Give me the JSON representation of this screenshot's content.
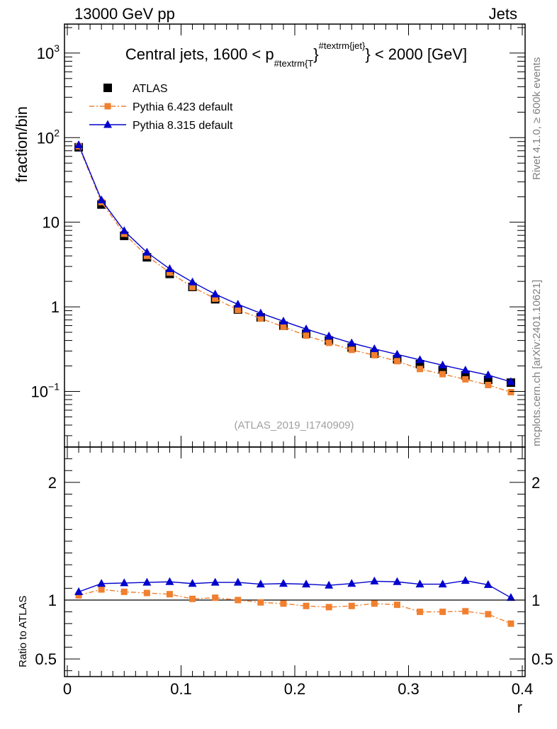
{
  "header": {
    "left": "13000 GeV pp",
    "right": "Jets"
  },
  "side": {
    "rivet": "Rivet 4.1.0, ≥ 600k events",
    "mcplots": "mcplots.cern.ch [arXiv:2401.10621]"
  },
  "chart_data": {
    "type": "line",
    "title_parts": {
      "pre": "Central jets, 1600 < p",
      "sub": "#textrm{T",
      "mid": "}",
      "sup": "#textrm{jet}",
      "post": "} < 2000 [GeV]"
    },
    "ylabel": "fraction/bin",
    "ratio_ylabel": "Ratio to ATLAS",
    "xlabel": "r",
    "watermark": "(ATLAS_2019_I1740909)",
    "xlim": [
      -0.0025,
      0.4025
    ],
    "ylim": [
      0.022,
      2200
    ],
    "ratio_ylim": [
      0.35,
      2.3
    ],
    "x_ticks": [
      {
        "v": 0,
        "label": "0"
      },
      {
        "v": 0.1,
        "label": "0.1"
      },
      {
        "v": 0.2,
        "label": "0.2"
      },
      {
        "v": 0.3,
        "label": "0.3"
      },
      {
        "v": 0.4,
        "label": "0.4"
      }
    ],
    "y_ticks": [
      {
        "v": 1000,
        "label": "10",
        "exp": "3"
      },
      {
        "v": 100,
        "label": "10",
        "exp": "2"
      },
      {
        "v": 10,
        "label": "10",
        "exp": ""
      },
      {
        "v": 1,
        "label": "1",
        "exp": ""
      },
      {
        "v": 0.1,
        "label": "10",
        "exp": "−1"
      }
    ],
    "ratio_ticks": [
      {
        "v": 0.5,
        "label": "0.5"
      },
      {
        "v": 1,
        "label": "1"
      },
      {
        "v": 2,
        "label": "2"
      }
    ],
    "x": [
      0.01,
      0.03,
      0.05,
      0.07,
      0.09,
      0.11,
      0.13,
      0.15,
      0.17,
      0.19,
      0.21,
      0.23,
      0.25,
      0.27,
      0.29,
      0.31,
      0.33,
      0.35,
      0.37,
      0.39
    ],
    "series": [
      {
        "name": "ATLAS",
        "color": "#000000",
        "marker": "square",
        "values": [
          77,
          16.2,
          6.9,
          3.85,
          2.45,
          1.72,
          1.23,
          0.93,
          0.75,
          0.6,
          0.48,
          0.4,
          0.33,
          0.28,
          0.24,
          0.21,
          0.18,
          0.155,
          0.137,
          0.127
        ],
        "ratio": [
          1,
          1,
          1,
          1,
          1,
          1,
          1,
          1,
          1,
          1,
          1,
          1,
          1,
          1,
          1,
          1,
          1,
          1,
          1,
          1
        ]
      },
      {
        "name": "Pythia 6.423 default",
        "color": "#f08030",
        "marker": "square-small",
        "values": [
          79,
          17.3,
          7.3,
          4.0,
          2.54,
          1.71,
          1.25,
          0.92,
          0.73,
          0.58,
          0.456,
          0.375,
          0.31,
          0.268,
          0.228,
          0.184,
          0.16,
          0.139,
          0.119,
          0.098
        ],
        "ratio": [
          1.04,
          1.09,
          1.07,
          1.06,
          1.05,
          1.01,
          1.02,
          1.0,
          0.98,
          0.97,
          0.95,
          0.94,
          0.95,
          0.97,
          0.96,
          0.9,
          0.9,
          0.905,
          0.88,
          0.8
        ]
      },
      {
        "name": "Pythia 8.315 default",
        "color": "#0000cc",
        "marker": "triangle",
        "values": [
          82,
          18.3,
          7.9,
          4.4,
          2.81,
          1.96,
          1.41,
          1.07,
          0.84,
          0.675,
          0.545,
          0.45,
          0.373,
          0.318,
          0.274,
          0.236,
          0.204,
          0.178,
          0.156,
          0.13
        ],
        "ratio": [
          1.07,
          1.14,
          1.145,
          1.15,
          1.155,
          1.14,
          1.15,
          1.15,
          1.135,
          1.14,
          1.135,
          1.125,
          1.14,
          1.16,
          1.155,
          1.135,
          1.135,
          1.165,
          1.13,
          1.02
        ]
      }
    ]
  }
}
